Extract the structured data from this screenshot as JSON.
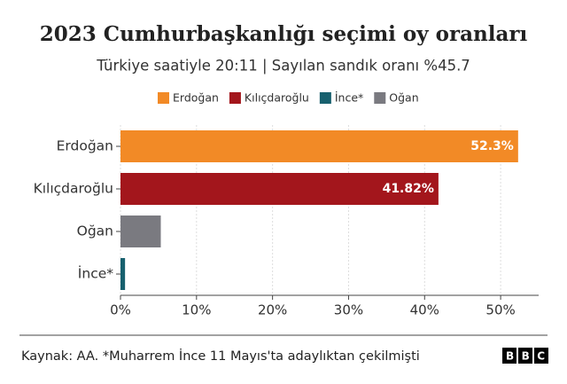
{
  "chart_data": {
    "type": "barh",
    "title": "2023 Cumhurbaşkanlığı seçimi oy oranları",
    "subtitle": "Türkiye saatiyle 20:11 | Sayılan sandık oranı %45.7",
    "legend": [
      {
        "name": "Erdoğan",
        "color": "#f28a26"
      },
      {
        "name": "Kılıçdaroğlu",
        "color": "#a3161c"
      },
      {
        "name": "İnce*",
        "color": "#17606e"
      },
      {
        "name": "Oğan",
        "color": "#7a7a80"
      }
    ],
    "categories": [
      "Erdoğan",
      "Kılıçdaroğlu",
      "Oğan",
      "İnce*"
    ],
    "values": [
      52.3,
      41.82,
      5.3,
      0.6
    ],
    "value_labels": [
      "52.3%",
      "41.82%",
      null,
      null
    ],
    "colors": [
      "#f28a26",
      "#a3161c",
      "#7a7a80",
      "#17606e"
    ],
    "xlim": [
      0,
      55
    ],
    "xticks": [
      {
        "value": 0,
        "label": "0%"
      },
      {
        "value": 10,
        "label": "10%"
      },
      {
        "value": 20,
        "label": "20%"
      },
      {
        "value": 30,
        "label": "30%"
      },
      {
        "value": 40,
        "label": "40%"
      },
      {
        "value": 50,
        "label": "50%"
      }
    ],
    "grid": true,
    "source": "Kaynak: AA. *Muharrem İnce 11 Mayıs'ta adaylıktan çekilmişti",
    "logo": "BBC"
  }
}
